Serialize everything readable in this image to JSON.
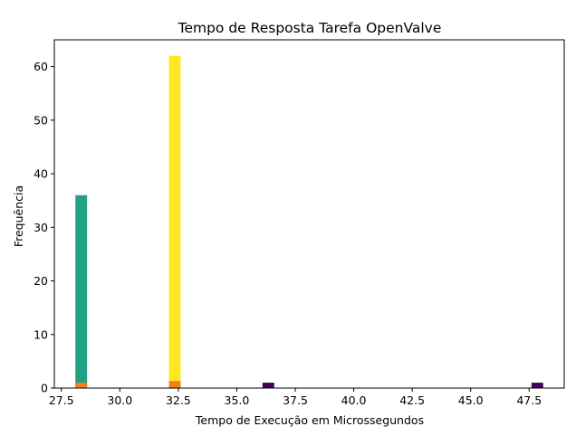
{
  "chart_data": {
    "type": "bar",
    "title": "Tempo de Resposta Tarefa OpenValve",
    "xlabel": "Tempo de Execução em Microssegundos",
    "ylabel": "Frequência",
    "xlim": [
      27.2,
      49.0
    ],
    "ylim": [
      0,
      65
    ],
    "bin_width": 0.5,
    "grid": false,
    "x_ticks": [
      {
        "value": 27.5,
        "label": "27.5"
      },
      {
        "value": 30.0,
        "label": "30.0"
      },
      {
        "value": 32.5,
        "label": "32.5"
      },
      {
        "value": 35.0,
        "label": "35.0"
      },
      {
        "value": 37.5,
        "label": "37.5"
      },
      {
        "value": 40.0,
        "label": "40.0"
      },
      {
        "value": 42.5,
        "label": "42.5"
      },
      {
        "value": 45.0,
        "label": "45.0"
      },
      {
        "value": 47.5,
        "label": "47.5"
      }
    ],
    "y_ticks": [
      {
        "value": 0,
        "label": "0"
      },
      {
        "value": 10,
        "label": "10"
      },
      {
        "value": 20,
        "label": "20"
      },
      {
        "value": 30,
        "label": "30"
      },
      {
        "value": 40,
        "label": "40"
      },
      {
        "value": 50,
        "label": "50"
      },
      {
        "value": 60,
        "label": "60"
      }
    ],
    "bars": [
      {
        "x0": 28.1,
        "x1": 28.6,
        "value": 36,
        "color": "#22a185"
      },
      {
        "x0": 28.1,
        "x1": 28.6,
        "value": 1,
        "color": "#f57f17"
      },
      {
        "x0": 32.1,
        "x1": 32.6,
        "value": 62,
        "color": "#fde723"
      },
      {
        "x0": 32.1,
        "x1": 32.6,
        "value": 1.3,
        "color": "#f57f17"
      },
      {
        "x0": 36.1,
        "x1": 36.6,
        "value": 1,
        "color": "#44015a"
      },
      {
        "x0": 47.6,
        "x1": 48.1,
        "value": 1,
        "color": "#44015a"
      }
    ]
  }
}
